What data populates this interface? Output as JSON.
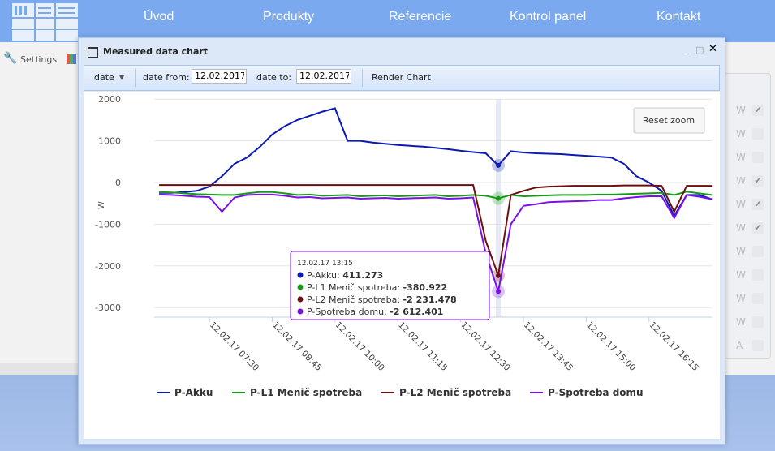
{
  "nav": {
    "items": [
      "Úvod",
      "Produkty",
      "Referencie",
      "Kontrol panel",
      "Kontakt"
    ]
  },
  "subbar": {
    "settings": "Settings"
  },
  "right_panel": {
    "rows": [
      {
        "unit": "W",
        "checked": true
      },
      {
        "unit": "W",
        "checked": false
      },
      {
        "unit": "W",
        "checked": false
      },
      {
        "unit": "W",
        "checked": true
      },
      {
        "unit": "W",
        "checked": true
      },
      {
        "unit": "W",
        "checked": true
      },
      {
        "unit": "W",
        "checked": false
      },
      {
        "unit": "W",
        "checked": false
      },
      {
        "unit": "W",
        "checked": false
      },
      {
        "unit": "W",
        "checked": false
      },
      {
        "unit": "A",
        "checked": false
      }
    ]
  },
  "window": {
    "title": "Measured data chart",
    "minimize": "_",
    "maximize": "□",
    "close": "✕"
  },
  "toolbar": {
    "mode": "date",
    "date_from_label": "date from:",
    "date_from": "12.02.2017",
    "date_to_label": "date to:",
    "date_to": "12.02.2017",
    "render": "Render Chart"
  },
  "chart": {
    "reset_zoom": "Reset zoom"
  },
  "tooltip": {
    "header": "12.02.17 13:15",
    "rows": [
      {
        "label": "P-Akku: ",
        "value": "411.273"
      },
      {
        "label": "P-L1 Menič spotreba: ",
        "value": "-380.922"
      },
      {
        "label": "P-L2 Menič spotreba: ",
        "value": "-2 231.478"
      },
      {
        "label": "P-Spotreba domu: ",
        "value": "-2 612.401"
      }
    ]
  },
  "chart_data": {
    "type": "line",
    "title": "",
    "xlabel": "",
    "ylabel": "W",
    "ylim": [
      -3000,
      2000
    ],
    "yticks": [
      2000,
      1000,
      0,
      -1000,
      -2000,
      -3000
    ],
    "xticks": [
      "12.02.17 07:30",
      "12.02.17 08:45",
      "12.02.17 10:00",
      "12.02.17 11:15",
      "12.02.17 12:30",
      "12.02.17 13:45",
      "12.02.17 15:00",
      "12.02.17 16:15"
    ],
    "x_start": "06:30",
    "x_step_minutes": 15,
    "legend_position": "bottom",
    "series": [
      {
        "name": "P-Akku",
        "color": "#0b1ab0",
        "values": [
          -250,
          -250,
          -230,
          -200,
          -100,
          150,
          450,
          600,
          850,
          1150,
          1350,
          1500,
          1600,
          1700,
          1780,
          1000,
          1000,
          960,
          930,
          900,
          880,
          860,
          830,
          800,
          760,
          730,
          700,
          411.273,
          750,
          720,
          700,
          690,
          680,
          660,
          640,
          620,
          600,
          450,
          150,
          0,
          -200,
          -800,
          -300,
          -300,
          -400
        ]
      },
      {
        "name": "P-L1 Menič spotreba",
        "color": "#1a9a1a",
        "values": [
          -230,
          -240,
          -260,
          -280,
          -290,
          -300,
          -300,
          -260,
          -230,
          -230,
          -260,
          -300,
          -290,
          -320,
          -310,
          -300,
          -330,
          -320,
          -310,
          -330,
          -320,
          -310,
          -300,
          -330,
          -320,
          -300,
          -320,
          -380.922,
          -300,
          -330,
          -320,
          -310,
          -300,
          -300,
          -300,
          -290,
          -290,
          -280,
          -270,
          -260,
          -250,
          -300,
          -220,
          -260,
          -300
        ]
      },
      {
        "name": "P-L2 Menič spotreba",
        "color": "#6b0f0f",
        "values": [
          -60,
          -60,
          -60,
          -60,
          -60,
          -60,
          -60,
          -60,
          -60,
          -60,
          -60,
          -60,
          -60,
          -60,
          -60,
          -60,
          -60,
          -60,
          -60,
          -60,
          -60,
          -60,
          -60,
          -60,
          -60,
          -60,
          -1400,
          -2231.478,
          -300,
          -200,
          -120,
          -100,
          -90,
          -80,
          -80,
          -80,
          -80,
          -70,
          -70,
          -70,
          -80,
          -700,
          -80,
          -80,
          -80
        ]
      },
      {
        "name": "P-Spotreba domu",
        "color": "#7a10e8",
        "values": [
          -290,
          -300,
          -320,
          -340,
          -350,
          -700,
          -360,
          -300,
          -290,
          -290,
          -320,
          -360,
          -350,
          -380,
          -370,
          -360,
          -390,
          -380,
          -370,
          -390,
          -380,
          -370,
          -360,
          -390,
          -380,
          -360,
          -1700,
          -2612.401,
          -1000,
          -560,
          -520,
          -470,
          -460,
          -450,
          -440,
          -420,
          -420,
          -380,
          -350,
          -330,
          -330,
          -850,
          -300,
          -340,
          -400
        ]
      }
    ]
  }
}
